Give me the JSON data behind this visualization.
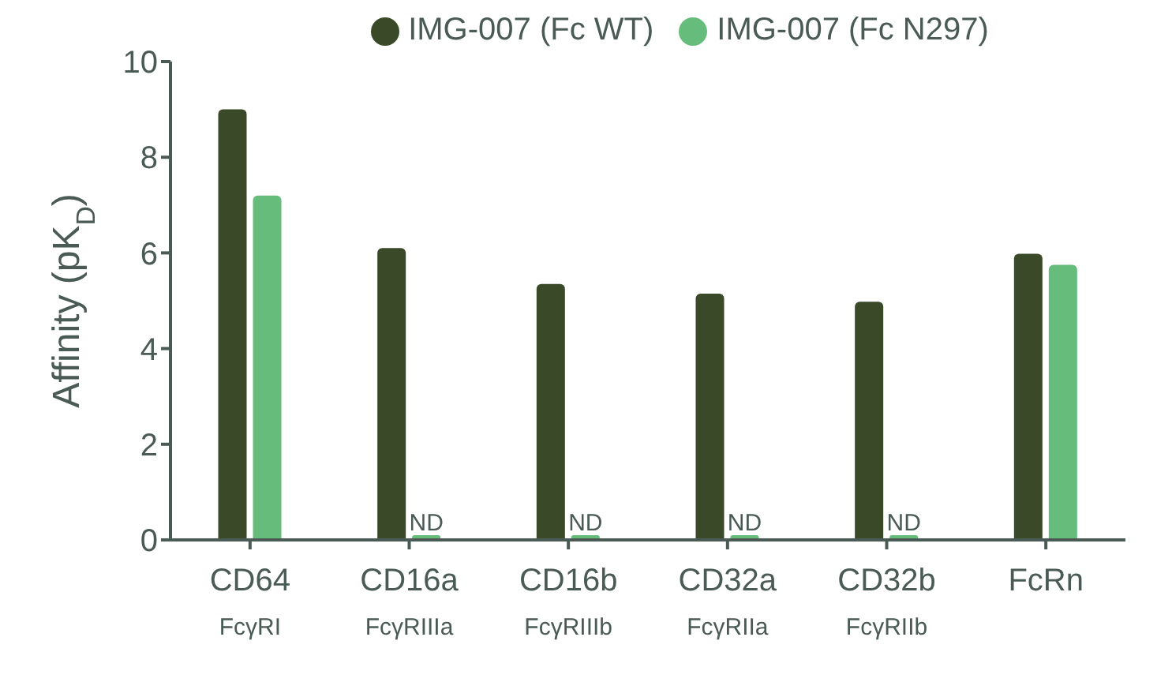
{
  "chart_data": {
    "type": "bar",
    "ylabel": "Affinity (pK$_{D}$)",
    "categories": [
      "CD64\nFcγRI",
      "CD16a\nFcγRIIIa",
      "CD16b\nFcγRIIIb",
      "CD32a\nFcγRIIa",
      "CD32b\nFcγRIIb",
      "FcRn"
    ],
    "series": [
      {
        "name": "IMG-007 (Fc WT)",
        "color": "#3a4a28",
        "values": [
          9.0,
          6.1,
          5.35,
          5.15,
          4.98,
          5.98
        ]
      },
      {
        "name": "IMG-007 (Fc N297)",
        "color": "#65bc7b",
        "values": [
          7.2,
          0.1,
          0.1,
          0.1,
          0.1,
          5.75
        ],
        "value_labels": [
          null,
          "ND",
          "ND",
          "ND",
          "ND",
          null
        ]
      }
    ],
    "ylim": [
      0,
      10
    ],
    "yticks": [
      0,
      2,
      4,
      6,
      8,
      10
    ],
    "legend": "top"
  }
}
